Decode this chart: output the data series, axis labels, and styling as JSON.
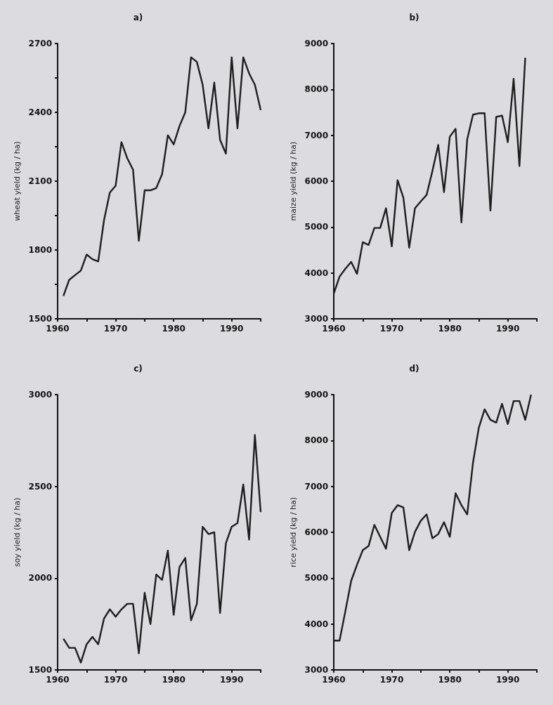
{
  "chart_data": [
    {
      "type": "line",
      "title": "a)",
      "ylabel": "wheat yield (kg / ha)",
      "grid": false,
      "marker": "none",
      "line_style": "solid",
      "xlim": [
        1960,
        1995
      ],
      "xticks": [
        1960,
        {
          "value": 1965,
          "label": null
        },
        1970,
        {
          "value": 1975,
          "label": null
        },
        1980,
        {
          "value": 1985,
          "label": null
        },
        1990,
        {
          "value": 1995,
          "label": null
        }
      ],
      "ylim": [
        1500,
        2700
      ],
      "yticks": [
        1500,
        {
          "value": 1650,
          "label": null
        },
        1800,
        {
          "value": 1950,
          "label": null
        },
        2100,
        {
          "value": 2250,
          "label": null
        },
        2400,
        {
          "value": 2550,
          "label": null
        },
        2700
      ],
      "x": [
        1961,
        1962,
        1963,
        1964,
        1965,
        1966,
        1967,
        1968,
        1969,
        1970,
        1971,
        1972,
        1973,
        1974,
        1975,
        1976,
        1977,
        1978,
        1979,
        1980,
        1981,
        1982,
        1983,
        1984,
        1985,
        1986,
        1987,
        1988,
        1989,
        1990,
        1991,
        1992,
        1993,
        1994,
        1995
      ],
      "series": [
        {
          "color": "#1e1e1e",
          "values": [
            1600,
            1670,
            1690,
            1710,
            1780,
            1760,
            1750,
            1930,
            2050,
            2080,
            2270,
            2200,
            2150,
            1840,
            2060,
            2060,
            2070,
            2130,
            2300,
            2260,
            2340,
            2400,
            2640,
            2620,
            2520,
            2330,
            2530,
            2280,
            2220,
            2640,
            2330,
            2640,
            2570,
            2520,
            2410
          ]
        }
      ]
    },
    {
      "type": "line",
      "title": "b)",
      "ylabel": "maize yield (kg / ha)",
      "grid": false,
      "marker": "none",
      "line_style": "solid",
      "xlim": [
        1960,
        1995
      ],
      "xticks": [
        1960,
        {
          "value": 1965,
          "label": null
        },
        1970,
        {
          "value": 1975,
          "label": null
        },
        1980,
        {
          "value": 1985,
          "label": null
        },
        1990,
        {
          "value": 1995,
          "label": null
        }
      ],
      "ylim": [
        3000,
        9000
      ],
      "yticks": [
        3000,
        4000,
        5000,
        6000,
        7000,
        8000,
        9000
      ],
      "x": [
        1960,
        1961,
        1962,
        1963,
        1964,
        1965,
        1966,
        1967,
        1968,
        1969,
        1970,
        1971,
        1972,
        1973,
        1974,
        1975,
        1976,
        1977,
        1978,
        1979,
        1980,
        1981,
        1982,
        1983,
        1984,
        1985,
        1986,
        1987,
        1988,
        1989,
        1990,
        1991,
        1992,
        1993
      ],
      "series": [
        {
          "color": "#1e1e1e",
          "values": [
            3550,
            3920,
            4090,
            4240,
            3980,
            4670,
            4610,
            4980,
            4980,
            5410,
            4580,
            6020,
            5640,
            4550,
            5410,
            5560,
            5700,
            6220,
            6790,
            5760,
            6970,
            7140,
            5100,
            6910,
            7450,
            7480,
            7480,
            5360,
            7400,
            7430,
            6850,
            8230,
            6330,
            8690
          ]
        }
      ]
    },
    {
      "type": "line",
      "title": "c)",
      "ylabel": "soy yield (kg / ha)",
      "grid": false,
      "marker": "none",
      "line_style": "solid",
      "xlim": [
        1960,
        1995
      ],
      "xticks": [
        1960,
        {
          "value": 1965,
          "label": null
        },
        1970,
        {
          "value": 1975,
          "label": null
        },
        1980,
        {
          "value": 1985,
          "label": null
        },
        1990,
        {
          "value": 1995,
          "label": null
        }
      ],
      "ylim": [
        1500,
        3000
      ],
      "yticks": [
        1500,
        2000,
        2500,
        3000
      ],
      "x": [
        1961,
        1962,
        1963,
        1964,
        1965,
        1966,
        1967,
        1968,
        1969,
        1970,
        1971,
        1972,
        1973,
        1974,
        1975,
        1976,
        1977,
        1978,
        1979,
        1980,
        1981,
        1982,
        1983,
        1984,
        1985,
        1986,
        1987,
        1988,
        1989,
        1990,
        1991,
        1992,
        1993,
        1994,
        1995
      ],
      "series": [
        {
          "color": "#1e1e1e",
          "values": [
            1670,
            1620,
            1620,
            1540,
            1640,
            1680,
            1640,
            1780,
            1830,
            1790,
            1830,
            1860,
            1860,
            1590,
            1920,
            1750,
            2020,
            1990,
            2150,
            1800,
            2060,
            2110,
            1770,
            1860,
            2280,
            2240,
            2250,
            1810,
            2190,
            2280,
            2300,
            2510,
            2210,
            2780,
            2360
          ]
        }
      ]
    },
    {
      "type": "line",
      "title": "d)",
      "ylabel": "rice yield (kg / ha)",
      "grid": false,
      "marker": "none",
      "line_style": "solid",
      "xlim": [
        1960,
        1995
      ],
      "xticks": [
        1960,
        {
          "value": 1965,
          "label": null
        },
        1970,
        {
          "value": 1975,
          "label": null
        },
        1980,
        {
          "value": 1985,
          "label": null
        },
        1990,
        {
          "value": 1995,
          "label": null
        }
      ],
      "ylim": [
        3000,
        9000
      ],
      "yticks": [
        3000,
        4000,
        5000,
        6000,
        7000,
        8000,
        9000
      ],
      "x": [
        1960,
        1961,
        1962,
        1963,
        1964,
        1965,
        1966,
        1967,
        1968,
        1969,
        1970,
        1971,
        1972,
        1973,
        1974,
        1975,
        1976,
        1977,
        1978,
        1979,
        1980,
        1981,
        1982,
        1983,
        1984,
        1985,
        1986,
        1987,
        1988,
        1989,
        1990,
        1991,
        1992,
        1993,
        1994
      ],
      "series": [
        {
          "color": "#1e1e1e",
          "values": [
            3640,
            3640,
            4280,
            4940,
            5290,
            5610,
            5700,
            6160,
            5900,
            5640,
            6420,
            6590,
            6540,
            5610,
            6010,
            6250,
            6390,
            5870,
            5960,
            6220,
            5900,
            6850,
            6590,
            6390,
            7520,
            8280,
            8680,
            8450,
            8390,
            8800,
            8360,
            8860,
            8860,
            8450,
            9000
          ]
        }
      ]
    }
  ]
}
